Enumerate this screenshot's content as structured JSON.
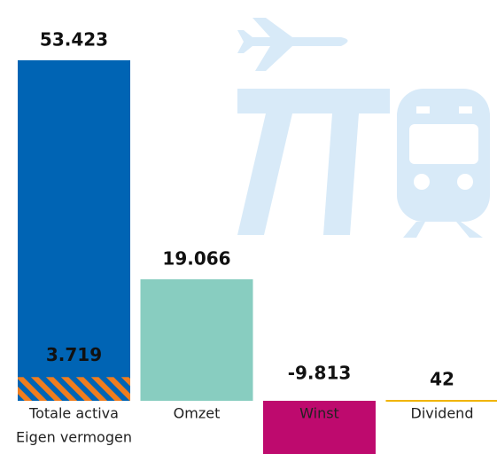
{
  "chart_data": {
    "type": "bar",
    "categories": [
      "Totale activa",
      "Omzet",
      "Winst",
      "Dividend"
    ],
    "values": [
      53423,
      19066,
      -9813,
      42
    ],
    "value_labels": [
      "53.423",
      "19.066",
      "-9.813",
      "42"
    ],
    "colors": [
      "#0064b4",
      "#88cdc0",
      "#be0a6e",
      "#f0b400"
    ],
    "overlay": {
      "name": "Eigen vermogen",
      "value": 3719,
      "value_label": "3.719",
      "color": "#f07d1e"
    }
  }
}
